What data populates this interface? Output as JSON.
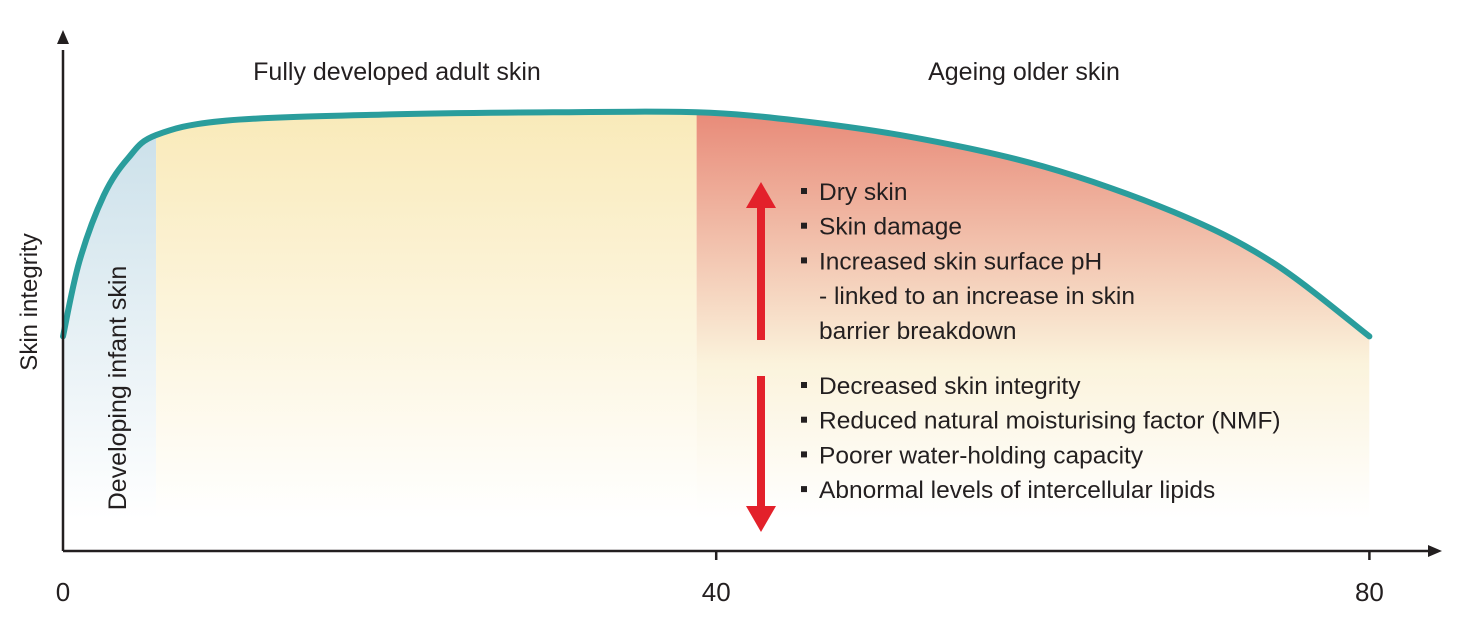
{
  "chart_data": {
    "type": "line",
    "xlabel": "",
    "ylabel": "Skin integrity",
    "xlim": [
      0,
      86
    ],
    "x_ticks": [
      "0",
      "40",
      "80"
    ],
    "colors": {
      "curve": "#2a9d9c",
      "infant_fill": "#c9dfe9",
      "adult_fill": "#f9eab9",
      "ageing_fill_top": "#e88a78",
      "ageing_fill_bottom": "#fbf3dc",
      "arrow": "#e3212b",
      "axis": "#231f20"
    },
    "regions": [
      {
        "label": "Developing infant skin",
        "x_start": 0,
        "x_end": 5.7
      },
      {
        "label": "Fully developed adult skin",
        "x_start": 5.7,
        "x_end": 38.8
      },
      {
        "label": "Ageing older skin",
        "x_start": 38.8,
        "x_end": 80
      }
    ],
    "series": [
      {
        "points": [
          {
            "x": 0,
            "y": 0.44
          },
          {
            "x": 1,
            "y": 0.62
          },
          {
            "x": 2.5,
            "y": 0.78
          },
          {
            "x": 4,
            "y": 0.87
          },
          {
            "x": 5.7,
            "y": 0.925
          },
          {
            "x": 10,
            "y": 0.96
          },
          {
            "x": 20,
            "y": 0.975
          },
          {
            "x": 30,
            "y": 0.98
          },
          {
            "x": 38.8,
            "y": 0.98
          },
          {
            "x": 45,
            "y": 0.96
          },
          {
            "x": 52,
            "y": 0.92
          },
          {
            "x": 60,
            "y": 0.85
          },
          {
            "x": 68,
            "y": 0.74
          },
          {
            "x": 74,
            "y": 0.62
          },
          {
            "x": 80,
            "y": 0.44
          }
        ]
      }
    ],
    "annotations": {
      "increases": [
        "Dry skin",
        "Skin damage",
        "Increased skin surface pH",
        "- linked to an increase in skin",
        "barrier breakdown"
      ],
      "decreases": [
        "Decreased skin integrity",
        "Reduced natural moisturising factor (NMF)",
        "Poorer water-holding capacity",
        "Abnormal levels of intercellular lipids"
      ]
    }
  }
}
